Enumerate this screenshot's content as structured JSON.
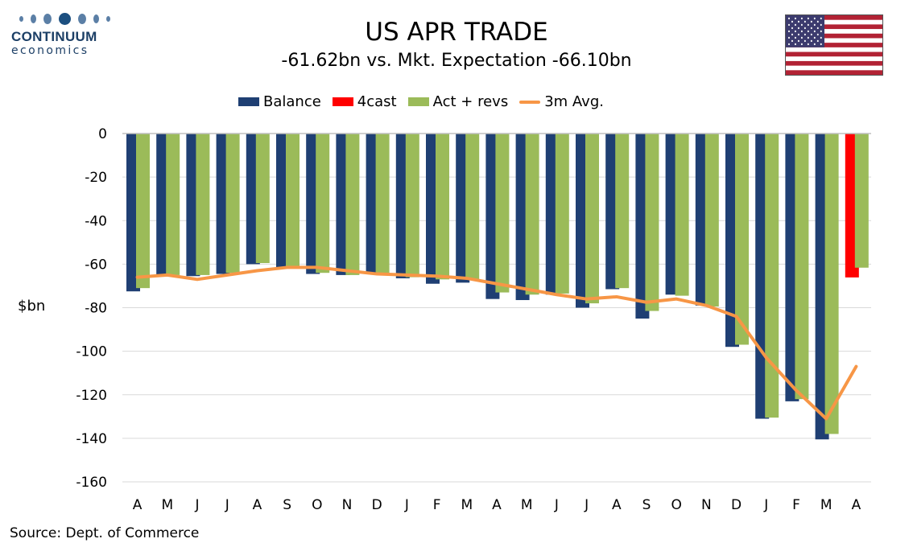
{
  "logo": {
    "name": "CONTINUUM",
    "sub": "economics"
  },
  "title": "US APR TRADE",
  "subtitle": "-61.62bn vs. Mkt. Expectation -66.10bn",
  "source": "Source: Dept. of Commerce",
  "colors": {
    "balance": "#1f3f73",
    "forecast": "#ff0000",
    "act_revs": "#9bbb59",
    "avg": "#f79646",
    "grid": "#d9d9d9"
  },
  "chart_data": {
    "type": "bar",
    "title": "US APR TRADE",
    "subtitle": "-61.62bn vs. Mkt. Expectation -66.10bn",
    "xlabel": "",
    "ylabel": "$bn",
    "ylim": [
      -160,
      0
    ],
    "yticks": [
      0,
      -20,
      -40,
      -60,
      -80,
      -100,
      -120,
      -140,
      -160
    ],
    "grid": true,
    "legend_position": "top",
    "categories": [
      "A",
      "M",
      "J",
      "J",
      "A",
      "S",
      "O",
      "N",
      "D",
      "J",
      "F",
      "M",
      "A",
      "M",
      "J",
      "J",
      "A",
      "S",
      "O",
      "N",
      "D",
      "J",
      "F",
      "M",
      "A"
    ],
    "series": [
      {
        "name": "Balance",
        "type": "bar",
        "color": "#1f3f73",
        "values": [
          -72.5,
          -65,
          -65.5,
          -64.5,
          -60,
          -61.5,
          -64.5,
          -65,
          -64,
          -66.5,
          -69,
          -68.5,
          -76,
          -76.5,
          -74,
          -80,
          -71.5,
          -85,
          -74,
          -79,
          -98,
          -131,
          -123,
          -140.5,
          null
        ]
      },
      {
        "name": "4cast",
        "type": "bar",
        "color": "#ff0000",
        "values": [
          null,
          null,
          null,
          null,
          null,
          null,
          null,
          null,
          null,
          null,
          null,
          null,
          null,
          null,
          null,
          null,
          null,
          null,
          null,
          null,
          null,
          null,
          null,
          null,
          -66.1
        ]
      },
      {
        "name": "Act + revs",
        "type": "bar",
        "color": "#9bbb59",
        "values": [
          -71,
          -65,
          -65,
          -64,
          -59.5,
          -61,
          -64,
          -65,
          -64.5,
          -66,
          -67,
          -67,
          -73,
          -74,
          -73.5,
          -78,
          -71,
          -81.5,
          -74.5,
          -79.5,
          -97,
          -130.5,
          -122,
          -138,
          -61.62
        ]
      },
      {
        "name": "3m Avg.",
        "type": "line",
        "color": "#f79646",
        "values": [
          -66,
          -65,
          -67,
          -65,
          -63,
          -61.5,
          -61.5,
          -63,
          -64.5,
          -65,
          -65.5,
          -66.5,
          -69,
          -71.5,
          -74,
          -76,
          -75,
          -77.5,
          -76,
          -79,
          -84,
          -103,
          -118,
          -131,
          -107
        ]
      }
    ]
  }
}
